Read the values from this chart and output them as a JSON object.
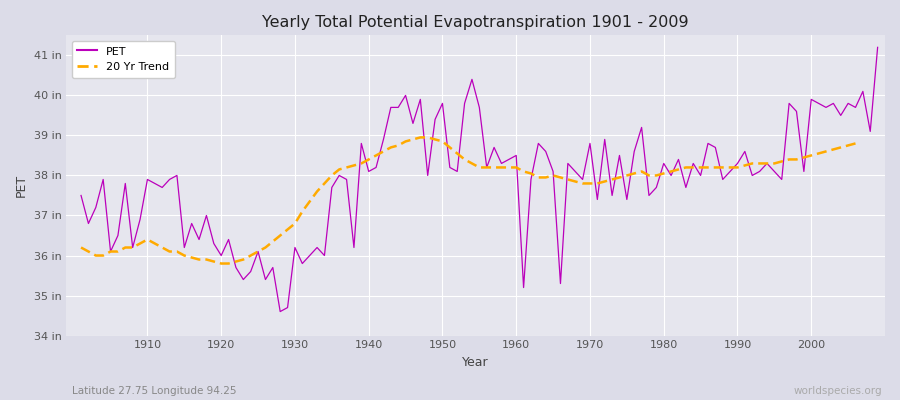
{
  "title": "Yearly Total Potential Evapotranspiration 1901 - 2009",
  "xlabel": "Year",
  "ylabel": "PET",
  "subtitle": "Latitude 27.75 Longitude 94.25",
  "watermark": "worldspecies.org",
  "pet_color": "#bb00bb",
  "trend_color": "#ffaa00",
  "bg_color": "#e6e6ee",
  "plot_bg": "#e6e6ee",
  "years": [
    1901,
    1902,
    1903,
    1904,
    1905,
    1906,
    1907,
    1908,
    1909,
    1910,
    1911,
    1912,
    1913,
    1914,
    1915,
    1916,
    1917,
    1918,
    1919,
    1920,
    1921,
    1922,
    1923,
    1924,
    1925,
    1926,
    1927,
    1928,
    1929,
    1930,
    1931,
    1932,
    1933,
    1934,
    1935,
    1936,
    1937,
    1938,
    1939,
    1940,
    1941,
    1942,
    1943,
    1944,
    1945,
    1946,
    1947,
    1948,
    1949,
    1950,
    1951,
    1952,
    1953,
    1954,
    1955,
    1956,
    1957,
    1958,
    1959,
    1960,
    1961,
    1962,
    1963,
    1964,
    1965,
    1966,
    1967,
    1968,
    1969,
    1970,
    1971,
    1972,
    1973,
    1974,
    1975,
    1976,
    1977,
    1978,
    1979,
    1980,
    1981,
    1982,
    1983,
    1984,
    1985,
    1986,
    1987,
    1988,
    1989,
    1990,
    1991,
    1992,
    1993,
    1994,
    1995,
    1996,
    1997,
    1998,
    1999,
    2000,
    2001,
    2002,
    2003,
    2004,
    2005,
    2006,
    2007,
    2008,
    2009
  ],
  "pet": [
    37.5,
    36.8,
    37.2,
    37.9,
    36.1,
    36.5,
    37.8,
    36.2,
    36.9,
    37.9,
    37.8,
    37.7,
    37.9,
    38.0,
    36.2,
    36.8,
    36.4,
    37.0,
    36.3,
    36.0,
    36.4,
    35.7,
    35.4,
    35.6,
    36.1,
    35.4,
    35.7,
    34.6,
    34.7,
    36.2,
    35.8,
    36.0,
    36.2,
    36.0,
    37.7,
    38.0,
    37.9,
    36.2,
    38.8,
    38.1,
    38.2,
    38.9,
    39.7,
    39.7,
    40.0,
    39.3,
    39.9,
    38.0,
    39.4,
    39.8,
    38.2,
    38.1,
    39.8,
    40.4,
    39.7,
    38.2,
    38.7,
    38.3,
    38.4,
    38.5,
    35.2,
    37.9,
    38.8,
    38.6,
    38.1,
    35.3,
    38.3,
    38.1,
    37.9,
    38.8,
    37.4,
    38.9,
    37.5,
    38.5,
    37.4,
    38.6,
    39.2,
    37.5,
    37.7,
    38.3,
    38.0,
    38.4,
    37.7,
    38.3,
    38.0,
    38.8,
    38.7,
    37.9,
    38.1,
    38.3,
    38.6,
    38.0,
    38.1,
    38.3,
    38.1,
    37.9,
    39.8,
    39.6,
    38.1,
    39.9,
    39.8,
    39.7,
    39.8,
    39.5,
    39.8,
    39.7,
    40.1,
    39.1,
    41.2
  ],
  "trend": [
    36.2,
    36.1,
    36.0,
    36.0,
    36.1,
    36.1,
    36.2,
    36.2,
    36.3,
    36.4,
    36.3,
    36.2,
    36.1,
    36.1,
    36.0,
    35.95,
    35.9,
    35.9,
    35.85,
    35.8,
    35.8,
    35.85,
    35.9,
    36.0,
    36.1,
    36.2,
    36.35,
    36.5,
    36.65,
    36.8,
    37.1,
    37.35,
    37.6,
    37.8,
    38.0,
    38.15,
    38.2,
    38.25,
    38.3,
    38.4,
    38.5,
    38.6,
    38.7,
    38.75,
    38.85,
    38.9,
    38.95,
    38.95,
    38.9,
    38.85,
    38.7,
    38.55,
    38.4,
    38.3,
    38.2,
    38.2,
    38.2,
    38.2,
    38.2,
    38.2,
    38.1,
    38.05,
    37.95,
    37.95,
    38.0,
    37.95,
    37.9,
    37.85,
    37.8,
    37.8,
    37.8,
    37.85,
    37.9,
    37.95,
    38.0,
    38.05,
    38.1,
    38.0,
    38.0,
    38.05,
    38.1,
    38.15,
    38.2,
    38.2,
    38.2,
    38.2,
    38.2,
    38.2,
    38.2,
    38.2,
    38.25,
    38.3,
    38.3,
    38.3,
    38.3,
    38.35,
    38.4,
    38.4,
    38.45,
    38.5,
    38.55,
    38.6,
    38.65,
    38.7,
    38.75,
    38.8,
    null,
    null,
    null
  ],
  "ylim": [
    34.0,
    41.5
  ],
  "yticks": [
    34,
    35,
    36,
    37,
    38,
    39,
    40,
    41
  ],
  "ytick_labels": [
    "34 in",
    "35 in",
    "36 in",
    "37 in",
    "38 in",
    "39 in",
    "40 in",
    "41 in"
  ],
  "xticks": [
    1910,
    1920,
    1930,
    1940,
    1950,
    1960,
    1970,
    1980,
    1990,
    2000
  ],
  "xlim": [
    1899,
    2010
  ]
}
